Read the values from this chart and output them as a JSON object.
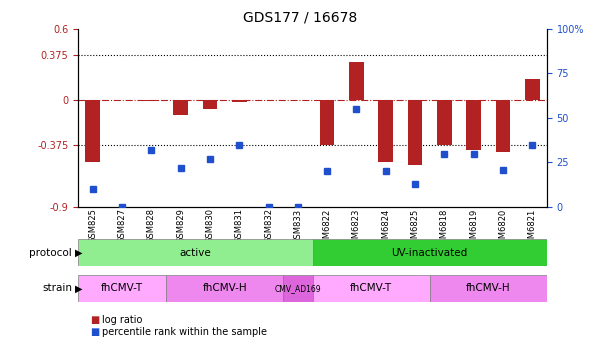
{
  "title": "GDS177 / 16678",
  "samples": [
    "GSM825",
    "GSM827",
    "GSM828",
    "GSM829",
    "GSM830",
    "GSM831",
    "GSM832",
    "GSM833",
    "GSM6822",
    "GSM6823",
    "GSM6824",
    "GSM6825",
    "GSM6818",
    "GSM6819",
    "GSM6820",
    "GSM6821"
  ],
  "log_ratio": [
    -0.52,
    0.0,
    -0.01,
    -0.13,
    -0.08,
    -0.02,
    0.0,
    0.0,
    -0.38,
    0.32,
    -0.52,
    -0.55,
    -0.38,
    -0.42,
    -0.44,
    0.18
  ],
  "percentile": [
    10,
    0,
    32,
    22,
    27,
    35,
    0,
    0,
    20,
    55,
    20,
    13,
    30,
    30,
    21,
    35
  ],
  "ylim_left": [
    -0.9,
    0.6
  ],
  "ylim_right": [
    0,
    100
  ],
  "yticks_left": [
    -0.9,
    -0.375,
    0,
    0.375,
    0.6
  ],
  "ytick_labels_left": [
    "-0.9",
    "-0.375",
    "0",
    "0.375",
    "0.6"
  ],
  "yticks_right": [
    0,
    25,
    50,
    75,
    100
  ],
  "ytick_labels_right": [
    "0",
    "25",
    "50",
    "75",
    "100%"
  ],
  "hlines": [
    0.375,
    -0.375
  ],
  "bar_color": "#b22222",
  "dot_color": "#1f4fcc",
  "zero_line_color": "#b22222",
  "protocol_groups": [
    {
      "label": "active",
      "start": 0,
      "end": 8,
      "color": "#90ee90"
    },
    {
      "label": "UV-inactivated",
      "start": 8,
      "end": 16,
      "color": "#32cd32"
    }
  ],
  "strain_groups": [
    {
      "label": "fhCMV-T",
      "start": 0,
      "end": 3,
      "color": "#ffaaff"
    },
    {
      "label": "fhCMV-H",
      "start": 3,
      "end": 7,
      "color": "#ee88ee"
    },
    {
      "label": "CMV_AD169",
      "start": 7,
      "end": 8,
      "color": "#dd66dd"
    },
    {
      "label": "fhCMV-T",
      "start": 8,
      "end": 12,
      "color": "#ffaaff"
    },
    {
      "label": "fhCMV-H",
      "start": 12,
      "end": 16,
      "color": "#ee88ee"
    }
  ],
  "legend_items": [
    {
      "label": "log ratio",
      "color": "#b22222"
    },
    {
      "label": "percentile rank within the sample",
      "color": "#1f4fcc"
    }
  ]
}
